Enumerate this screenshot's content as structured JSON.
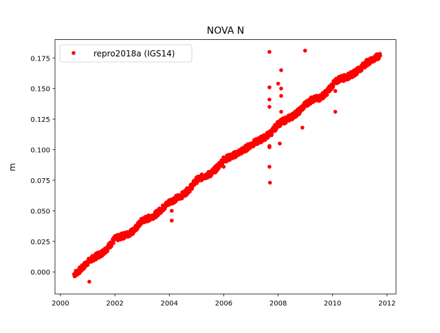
{
  "chart_data": {
    "type": "scatter",
    "title": "NOVA N",
    "xlabel": "",
    "ylabel": "m",
    "xlim": [
      1999.8,
      2012.33
    ],
    "ylim": [
      -0.018,
      0.19
    ],
    "xticks": [
      2000,
      2002,
      2004,
      2006,
      2008,
      2010,
      2012
    ],
    "xtick_labels": [
      "2000",
      "2002",
      "2004",
      "2006",
      "2008",
      "2010",
      "2012"
    ],
    "yticks": [
      0.0,
      0.025,
      0.05,
      0.075,
      0.1,
      0.125,
      0.15,
      0.175
    ],
    "ytick_labels": [
      "0.000",
      "0.025",
      "0.050",
      "0.075",
      "0.100",
      "0.125",
      "0.150",
      "0.175"
    ],
    "grid": false,
    "legend": {
      "position": "top-left",
      "entries": [
        "repro2018a (IGS14)"
      ]
    },
    "series": [
      {
        "name": "repro2018a (IGS14)",
        "color": "#ff0000",
        "marker": "circle",
        "trend_points": [
          [
            2000.5,
            -0.002
          ],
          [
            2000.75,
            0.002
          ],
          [
            2001.0,
            0.008
          ],
          [
            2001.25,
            0.012
          ],
          [
            2001.5,
            0.015
          ],
          [
            2001.75,
            0.02
          ],
          [
            2002.0,
            0.027
          ],
          [
            2002.25,
            0.029
          ],
          [
            2002.5,
            0.031
          ],
          [
            2002.75,
            0.035
          ],
          [
            2003.0,
            0.042
          ],
          [
            2003.25,
            0.044
          ],
          [
            2003.5,
            0.047
          ],
          [
            2003.75,
            0.052
          ],
          [
            2004.0,
            0.057
          ],
          [
            2004.25,
            0.06
          ],
          [
            2004.5,
            0.063
          ],
          [
            2004.75,
            0.068
          ],
          [
            2005.0,
            0.075
          ],
          [
            2005.25,
            0.078
          ],
          [
            2005.5,
            0.08
          ],
          [
            2005.75,
            0.085
          ],
          [
            2006.0,
            0.092
          ],
          [
            2006.25,
            0.094
          ],
          [
            2006.5,
            0.097
          ],
          [
            2006.75,
            0.1
          ],
          [
            2007.0,
            0.104
          ],
          [
            2007.25,
            0.107
          ],
          [
            2007.5,
            0.11
          ],
          [
            2007.75,
            0.114
          ],
          [
            2008.0,
            0.121
          ],
          [
            2008.25,
            0.124
          ],
          [
            2008.5,
            0.127
          ],
          [
            2008.75,
            0.131
          ],
          [
            2009.0,
            0.137
          ],
          [
            2009.25,
            0.141
          ],
          [
            2009.5,
            0.142
          ],
          [
            2009.75,
            0.146
          ],
          [
            2010.0,
            0.153
          ],
          [
            2010.25,
            0.158
          ],
          [
            2010.5,
            0.159
          ],
          [
            2010.75,
            0.162
          ],
          [
            2011.0,
            0.166
          ],
          [
            2011.25,
            0.171
          ],
          [
            2011.5,
            0.174
          ],
          [
            2011.75,
            0.177
          ]
        ],
        "outliers": [
          [
            2007.68,
            0.18
          ],
          [
            2008.99,
            0.181
          ],
          [
            2008.11,
            0.165
          ],
          [
            2007.68,
            0.151
          ],
          [
            2008.0,
            0.154
          ],
          [
            2008.11,
            0.15
          ],
          [
            2007.68,
            0.141
          ],
          [
            2008.11,
            0.144
          ],
          [
            2007.68,
            0.135
          ],
          [
            2008.11,
            0.131
          ],
          [
            2008.89,
            0.118
          ],
          [
            2010.1,
            0.131
          ],
          [
            2010.1,
            0.148
          ],
          [
            2007.68,
            0.103
          ],
          [
            2007.68,
            0.102
          ],
          [
            2008.06,
            0.105
          ],
          [
            2007.68,
            0.086
          ],
          [
            2007.7,
            0.073
          ],
          [
            2001.06,
            -0.008
          ],
          [
            2004.09,
            0.042
          ],
          [
            2004.09,
            0.05
          ],
          [
            2006.0,
            0.086
          ]
        ]
      }
    ]
  }
}
